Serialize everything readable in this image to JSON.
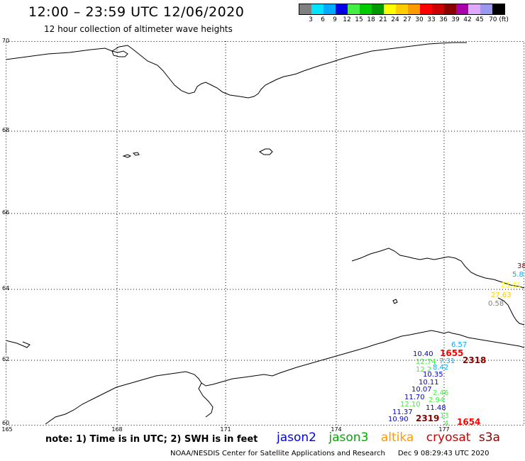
{
  "header": {
    "title": "12:00 – 23:59 UTC 12/06/2020",
    "subtitle": "12 hour collection of altimeter wave heights"
  },
  "legend": {
    "colors": [
      "#808080",
      "#00e5ff",
      "#00aaff",
      "#0000e6",
      "#44ee44",
      "#00cc00",
      "#009900",
      "#ffff00",
      "#ffcc00",
      "#ff9900",
      "#ff0000",
      "#cc0000",
      "#880000",
      "#aa00aa",
      "#ddaaff",
      "#9999ee",
      "#000000"
    ],
    "ticks": [
      "3",
      "6",
      "9",
      "12",
      "15",
      "18",
      "21",
      "24",
      "27",
      "30",
      "33",
      "36",
      "39",
      "42",
      "45",
      "70 (ft)"
    ]
  },
  "axes": {
    "lat_labels": [
      "70",
      "68",
      "66",
      "64",
      "62",
      "60"
    ],
    "lon_labels": [
      "165",
      "168",
      "171",
      "174",
      "177"
    ]
  },
  "observations": [
    {
      "text": "38",
      "color": "#880000",
      "big": false
    },
    {
      "text": "5.8",
      "color": "#00aaff",
      "big": false
    },
    {
      "text": "23.61",
      "color": "#ffff00",
      "big": false
    },
    {
      "text": "27.63",
      "color": "#ffcc00",
      "big": false
    },
    {
      "text": "0.58",
      "color": "#808080",
      "big": false
    },
    {
      "text": "6.57",
      "color": "#00aaff",
      "big": false
    },
    {
      "text": "10.40",
      "color": "#0000e6",
      "big": false
    },
    {
      "text": "1655",
      "color": "#ff0000",
      "big": true
    },
    {
      "text": "2318",
      "color": "#880000",
      "big": true
    },
    {
      "text": "12.74",
      "color": "#44ee44",
      "big": false
    },
    {
      "text": "7.31",
      "color": "#00aaff",
      "big": false
    },
    {
      "text": "12.2",
      "color": "#44ee44",
      "big": false
    },
    {
      "text": "8.42",
      "color": "#00aaff",
      "big": false
    },
    {
      "text": "10.35",
      "color": "#0000e6",
      "big": false
    },
    {
      "text": "10.11",
      "color": "#0000e6",
      "big": false
    },
    {
      "text": "10.07",
      "color": "#0000e6",
      "big": false
    },
    {
      "text": "11.70",
      "color": "#0000e6",
      "big": false
    },
    {
      "text": "2.46",
      "color": "#44ee44",
      "big": false
    },
    {
      "text": "12.10",
      "color": "#44ee44",
      "big": false
    },
    {
      "text": "2.94",
      "color": "#44ee44",
      "big": false
    },
    {
      "text": "11.48",
      "color": "#0000e6",
      "big": false
    },
    {
      "text": "11.37",
      "color": "#0000e6",
      "big": false
    },
    {
      "text": "10.90",
      "color": "#0000e6",
      "big": false
    },
    {
      "text": "2319",
      "color": "#880000",
      "big": true
    },
    {
      "text": "13",
      "color": "#44ee44",
      "big": false
    },
    {
      "text": "1654",
      "color": "#ff0000",
      "big": true
    },
    {
      "text": "4",
      "color": "#44ee44",
      "big": false
    }
  ],
  "footer": {
    "note": "note:  1) Time is in UTC;  2) SWH is in feet",
    "satellites": [
      {
        "name": "jason2",
        "color": "#0000e6"
      },
      {
        "name": "jason3",
        "color": "#00aa00"
      },
      {
        "name": "altika",
        "color": "#ff9900"
      },
      {
        "name": "cryosat",
        "color": "#cc0000"
      },
      {
        "name": "s3a",
        "color": "#880000"
      }
    ],
    "credit": "NOAA/NESDIS Center for Satellite Applications and Research",
    "timestamp": "Dec  9 08:29:43 UTC 2020"
  }
}
